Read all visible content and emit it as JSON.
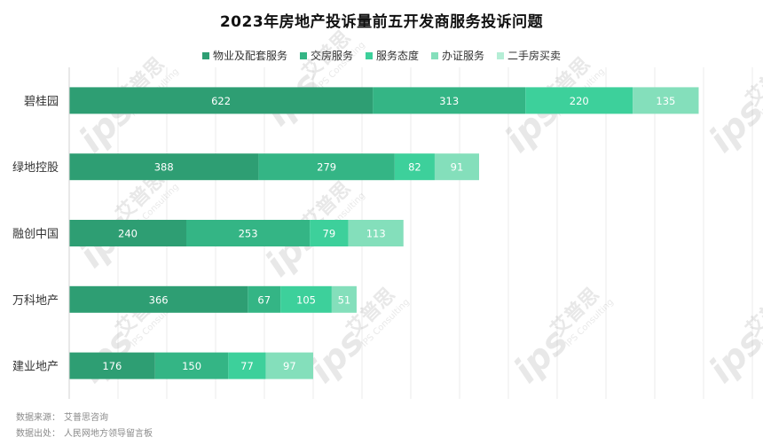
{
  "title": "2023年房地产投诉量前五开发商服务投诉问题",
  "footnotes": {
    "source_label": "数据来源：",
    "source_value": "艾普思咨询",
    "origin_label": "数据出处：",
    "origin_value": "人民网地方领导留言板"
  },
  "watermark": {
    "logo_text": "ips",
    "cn_text": "艾普思",
    "en_text": "IPS Consulting"
  },
  "chart_data": {
    "type": "bar",
    "orientation": "horizontal",
    "stacked": true,
    "title": "2023年房地产投诉量前五开发商服务投诉问题",
    "categories": [
      "碧桂园",
      "绿地控股",
      "融创中国",
      "万科地产",
      "建业地产"
    ],
    "series": [
      {
        "name": "物业及配套服务",
        "color": "#2e9e73",
        "values": [
          622,
          388,
          240,
          366,
          176
        ]
      },
      {
        "name": "交房服务",
        "color": "#34b585",
        "values": [
          313,
          279,
          253,
          67,
          150
        ]
      },
      {
        "name": "服务态度",
        "color": "#3dd09b",
        "values": [
          220,
          82,
          79,
          105,
          77
        ]
      },
      {
        "name": "办证服务",
        "color": "#84dfbb",
        "values": [
          135,
          91,
          113,
          51,
          97
        ]
      },
      {
        "name": "二手房买卖",
        "color": "#b5eed6",
        "values": [
          0,
          0,
          0,
          0,
          0
        ]
      }
    ],
    "xlim": [
      0,
      1400
    ],
    "grid": true,
    "legend_position": "top"
  }
}
